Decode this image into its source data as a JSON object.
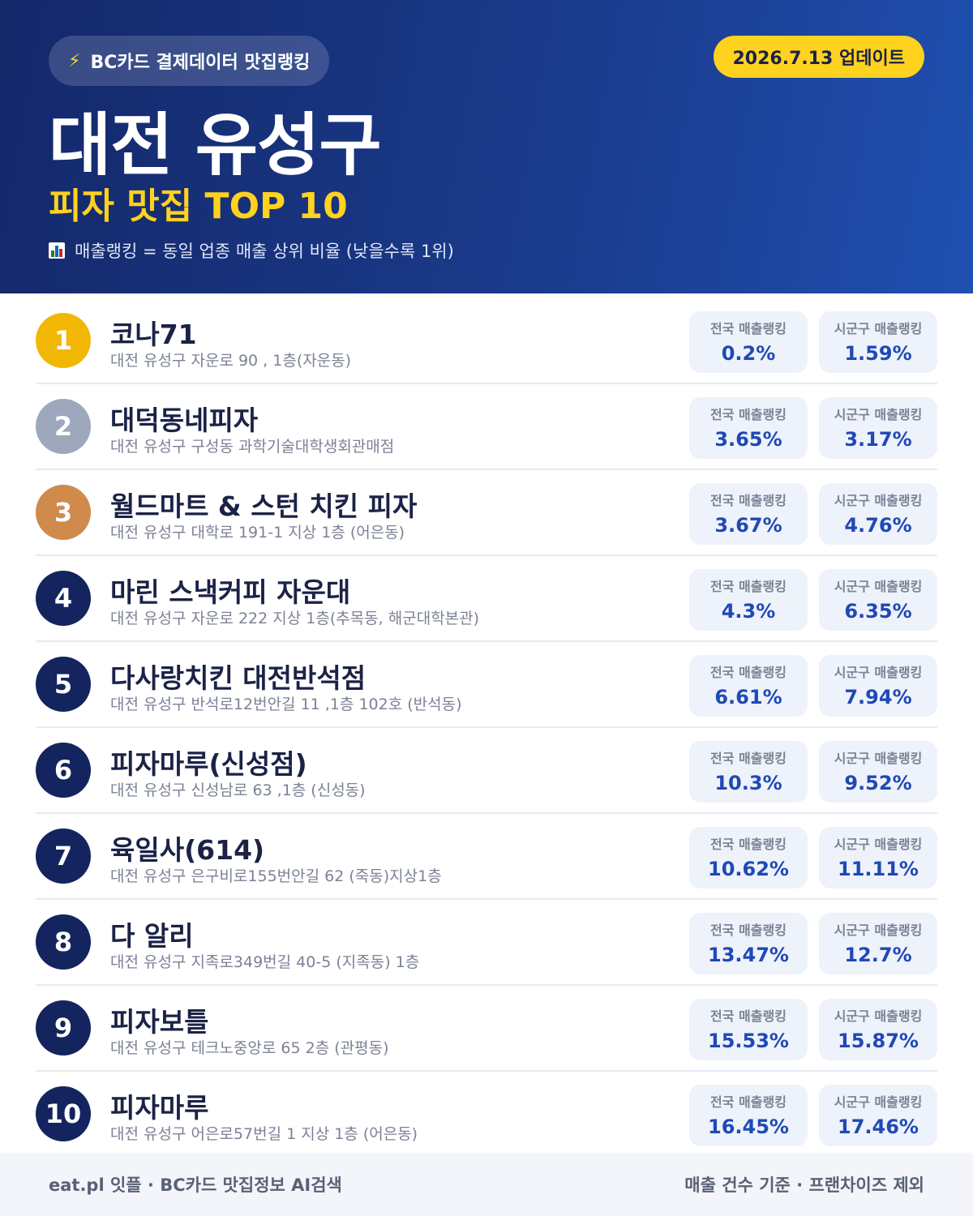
{
  "header": {
    "pill_icon": "lightning-icon",
    "pill_label": "BC카드 결제데이터 맛집랭킹",
    "date_badge": "2026.7.13 업데이트",
    "title": "대전 유성구",
    "subtitle": "피자 맛집 TOP 10",
    "note_icon": "bar-chart-icon",
    "note": "매출랭킹 = 동일 업종 매출 상위 비율 (낮을수록 1위)"
  },
  "colors": {
    "accent_yellow": "#ffd21f",
    "header_dark": "#14286a",
    "header_light": "#1f4fb0",
    "rank_gold": "#f2b705",
    "rank_silver": "#9ea8bd",
    "rank_bronze": "#cf8a4c",
    "rank_default": "#13245e",
    "value_blue": "#1f49b6"
  },
  "labels": {
    "national": "전국 매출랭킹",
    "local": "시군구 매출랭킹"
  },
  "rankings": [
    {
      "rank": "1",
      "name": "코나71",
      "address": "대전 유성구 자운로 90 , 1층(자운동)",
      "national": "0.2%",
      "local": "1.59%",
      "badge": "gold"
    },
    {
      "rank": "2",
      "name": "대덕동네피자",
      "address": "대전 유성구 구성동 과학기술대학생회관매점",
      "national": "3.65%",
      "local": "3.17%",
      "badge": "silver"
    },
    {
      "rank": "3",
      "name": "월드마트 & 스턴 치킨 피자",
      "address": "대전 유성구 대학로 191-1 지상 1층 (어은동)",
      "national": "3.67%",
      "local": "4.76%",
      "badge": "bronze"
    },
    {
      "rank": "4",
      "name": "마린 스낵커피 자운대",
      "address": "대전 유성구 자운로 222 지상 1층(추목동, 해군대학본관)",
      "national": "4.3%",
      "local": "6.35%",
      "badge": "default"
    },
    {
      "rank": "5",
      "name": "다사랑치킨 대전반석점",
      "address": "대전 유성구 반석로12번안길 11 ,1층 102호 (반석동)",
      "national": "6.61%",
      "local": "7.94%",
      "badge": "default"
    },
    {
      "rank": "6",
      "name": "피자마루(신성점)",
      "address": "대전 유성구 신성남로 63 ,1층 (신성동)",
      "national": "10.3%",
      "local": "9.52%",
      "badge": "default"
    },
    {
      "rank": "7",
      "name": "육일사(614)",
      "address": "대전 유성구 은구비로155번안길 62 (죽동)지상1층",
      "national": "10.62%",
      "local": "11.11%",
      "badge": "default"
    },
    {
      "rank": "8",
      "name": "다 알리",
      "address": "대전 유성구 지족로349번길 40-5 (지족동) 1층",
      "national": "13.47%",
      "local": "12.7%",
      "badge": "default"
    },
    {
      "rank": "9",
      "name": "피자보틀",
      "address": "대전 유성구 테크노중앙로 65 2층 (관평동)",
      "national": "15.53%",
      "local": "15.87%",
      "badge": "default"
    },
    {
      "rank": "10",
      "name": "피자마루",
      "address": "대전 유성구 어은로57번길 1 지상 1층 (어은동)",
      "national": "16.45%",
      "local": "17.46%",
      "badge": "default"
    }
  ],
  "footer": {
    "left": "eat.pl 잇플 · BC카드 맛집정보 AI검색",
    "right": "매출 건수 기준 · 프랜차이즈 제외"
  }
}
